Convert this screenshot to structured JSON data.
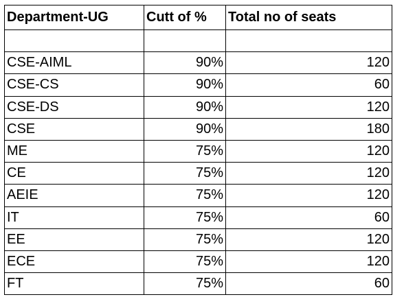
{
  "table": {
    "headers": [
      "Department-UG",
      "Cutt of %",
      "Total no of seats"
    ],
    "rows": [
      [
        "",
        "",
        ""
      ],
      [
        "CSE-AIML",
        "90%",
        "120"
      ],
      [
        "CSE-CS",
        "90%",
        "60"
      ],
      [
        "CSE-DS",
        "90%",
        "120"
      ],
      [
        "CSE",
        "90%",
        "180"
      ],
      [
        "ME",
        "75%",
        "120"
      ],
      [
        "CE",
        "75%",
        "120"
      ],
      [
        "AEIE",
        "75%",
        "120"
      ],
      [
        "IT",
        "75%",
        "60"
      ],
      [
        "EE",
        "75%",
        "120"
      ],
      [
        "ECE",
        "75%",
        "120"
      ],
      [
        "FT",
        "75%",
        "60"
      ]
    ]
  }
}
